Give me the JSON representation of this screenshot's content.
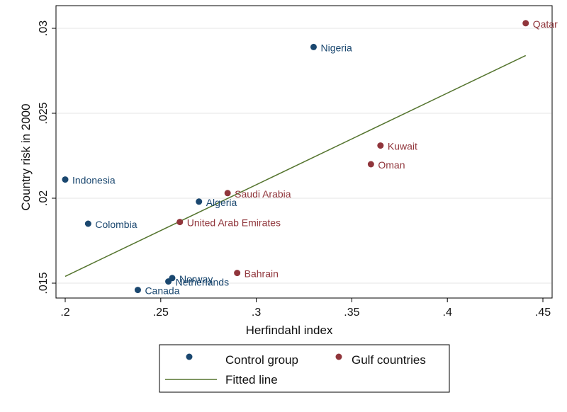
{
  "chart_data": {
    "type": "scatter",
    "xlabel": "Herfindahl index",
    "ylabel": "Country risk in 2000",
    "xlim": [
      0.2,
      0.45
    ],
    "ylim": [
      0.0147,
      0.0304
    ],
    "x_ticks": [
      {
        "value": 0.2,
        "label": ".2"
      },
      {
        "value": 0.25,
        "label": ".25"
      },
      {
        "value": 0.3,
        "label": ".3"
      },
      {
        "value": 0.35,
        "label": ".35"
      },
      {
        "value": 0.4,
        "label": ".4"
      },
      {
        "value": 0.45,
        "label": ".45"
      }
    ],
    "y_ticks": [
      {
        "value": 0.015,
        "label": ".015"
      },
      {
        "value": 0.02,
        "label": ".02"
      },
      {
        "value": 0.025,
        "label": ".025"
      },
      {
        "value": 0.03,
        "label": ".03"
      }
    ],
    "grid": "horizontal",
    "legend_position": "bottom",
    "series": [
      {
        "name": "Control group",
        "color": "#1a476f",
        "points": [
          {
            "label": "Nigeria",
            "x": 0.33,
            "y": 0.0289
          },
          {
            "label": "Indonesia",
            "x": 0.2,
            "y": 0.0211
          },
          {
            "label": "Algeria",
            "x": 0.27,
            "y": 0.0198
          },
          {
            "label": "Colombia",
            "x": 0.212,
            "y": 0.0185
          },
          {
            "label": "Norway",
            "x": 0.256,
            "y": 0.0153
          },
          {
            "label": "Netherlands",
            "x": 0.254,
            "y": 0.0151
          },
          {
            "label": "Canada",
            "x": 0.238,
            "y": 0.0146
          }
        ]
      },
      {
        "name": "Gulf countries",
        "color": "#90353b",
        "points": [
          {
            "label": "Qatar",
            "x": 0.441,
            "y": 0.0303
          },
          {
            "label": "Kuwait",
            "x": 0.365,
            "y": 0.0231
          },
          {
            "label": "Oman",
            "x": 0.36,
            "y": 0.022
          },
          {
            "label": "Saudi Arabia",
            "x": 0.285,
            "y": 0.0203
          },
          {
            "label": "United Arab Emirates",
            "x": 0.26,
            "y": 0.0186
          },
          {
            "label": "Bahrain",
            "x": 0.29,
            "y": 0.0156
          }
        ]
      }
    ],
    "fitted_line": {
      "name": "Fitted line",
      "color": "#55752f",
      "x": [
        0.2,
        0.441
      ],
      "y": [
        0.0154,
        0.0284
      ]
    }
  },
  "legend": {
    "items": [
      {
        "label": "Control group"
      },
      {
        "label": "Gulf countries"
      },
      {
        "label": "Fitted line"
      }
    ]
  }
}
